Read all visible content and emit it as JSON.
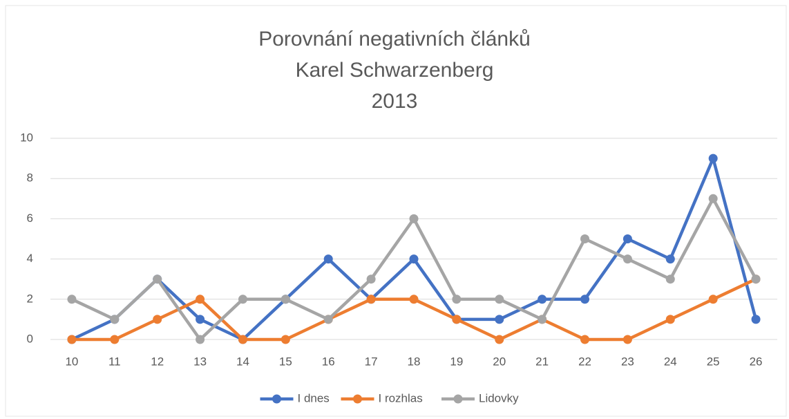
{
  "chart_data": {
    "type": "line",
    "title": [
      "Porovnání negativních článků",
      "Karel Schwarzenberg",
      "2013"
    ],
    "categories": [
      "10",
      "11",
      "12",
      "13",
      "14",
      "15",
      "16",
      "17",
      "18",
      "19",
      "20",
      "21",
      "22",
      "23",
      "24",
      "25",
      "26"
    ],
    "series": [
      {
        "name": "I dnes",
        "color": "#4472c4",
        "values": [
          0,
          1,
          3,
          1,
          0,
          2,
          4,
          2,
          4,
          1,
          1,
          2,
          2,
          5,
          4,
          9,
          1
        ]
      },
      {
        "name": "I rozhlas",
        "color": "#ed7d31",
        "values": [
          0,
          0,
          1,
          2,
          0,
          0,
          1,
          2,
          2,
          1,
          0,
          1,
          0,
          0,
          1,
          2,
          3
        ]
      },
      {
        "name": "Lidovky",
        "color": "#a5a5a5",
        "values": [
          2,
          1,
          3,
          0,
          2,
          2,
          1,
          3,
          6,
          2,
          2,
          1,
          5,
          4,
          3,
          7,
          3
        ]
      }
    ],
    "ylim": [
      0,
      10
    ],
    "yticks": [
      0,
      2,
      4,
      6,
      8,
      10
    ],
    "grid": true,
    "legend": "bottom"
  }
}
